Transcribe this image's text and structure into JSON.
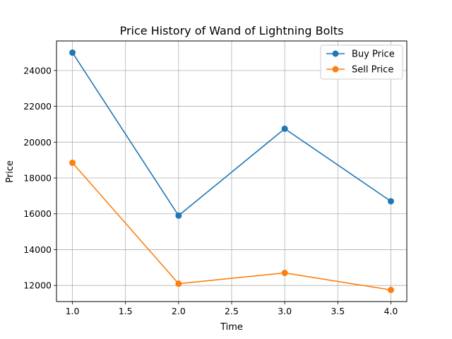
{
  "chart_data": {
    "type": "line",
    "title": "Price History of Wand of Lightning Bolts",
    "xlabel": "Time",
    "ylabel": "Price",
    "xlim": [
      0.85,
      4.15
    ],
    "ylim": [
      11100,
      25650
    ],
    "x_ticks": [
      1.0,
      1.5,
      2.0,
      2.5,
      3.0,
      3.5,
      4.0
    ],
    "x_tick_labels": [
      "1.0",
      "1.5",
      "2.0",
      "2.5",
      "3.0",
      "3.5",
      "4.0"
    ],
    "y_ticks": [
      12000,
      14000,
      16000,
      18000,
      20000,
      22000,
      24000
    ],
    "y_tick_labels": [
      "12000",
      "14000",
      "16000",
      "18000",
      "20000",
      "22000",
      "24000"
    ],
    "grid": true,
    "legend_position": "top-right",
    "x": [
      1,
      2,
      3,
      4
    ],
    "series": [
      {
        "name": "Buy Price",
        "color": "#1f77b4",
        "values": [
          25000,
          15900,
          20750,
          16700
        ]
      },
      {
        "name": "Sell Price",
        "color": "#ff7f0e",
        "values": [
          18850,
          12100,
          12700,
          11750
        ]
      }
    ]
  }
}
